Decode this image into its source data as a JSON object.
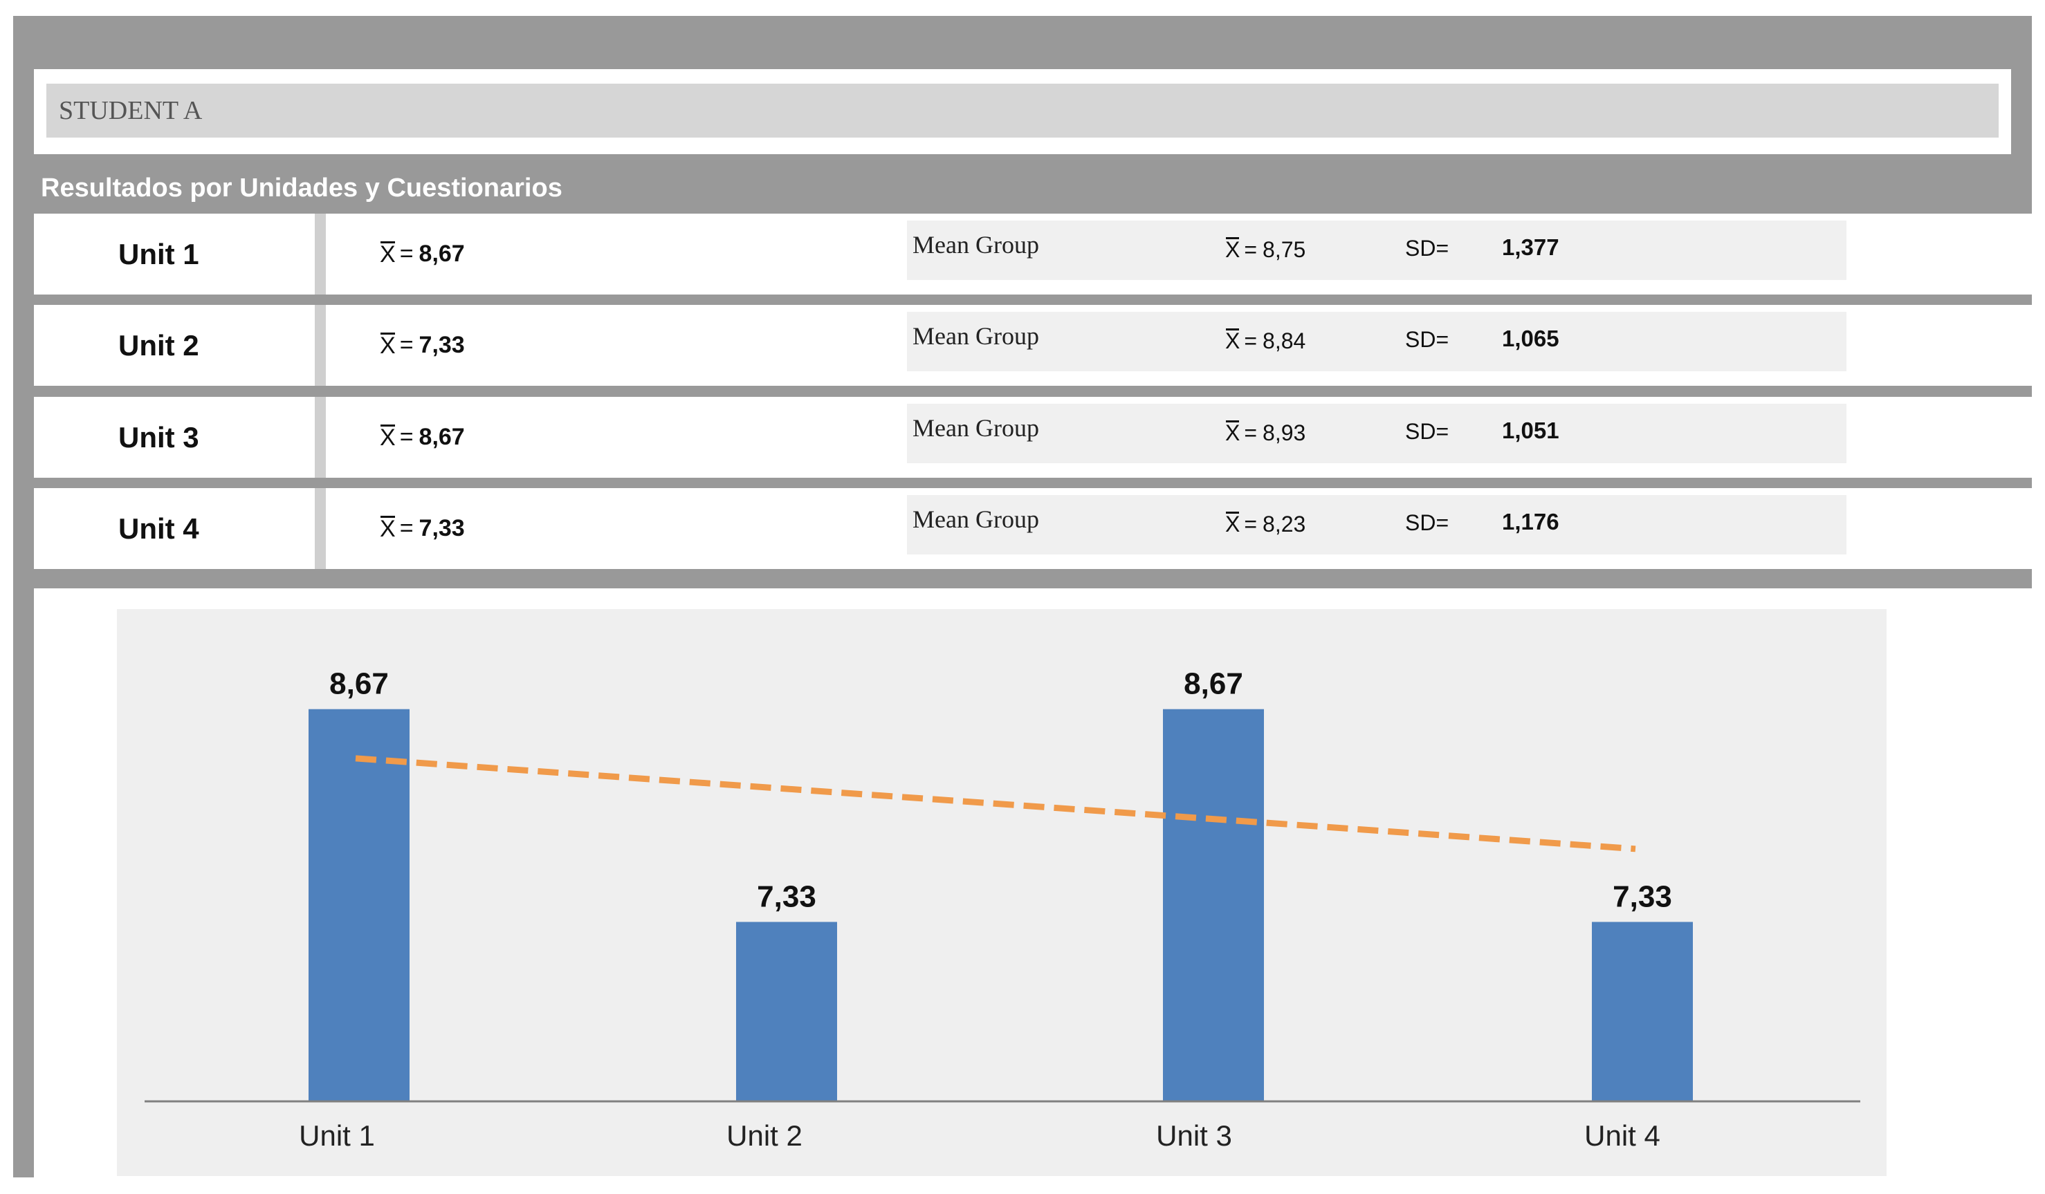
{
  "student": {
    "name": "STUDENT A"
  },
  "section": {
    "title": "Resultados por Unidades y Cuestionarios"
  },
  "units": [
    {
      "label": "Unit 1",
      "mean_symbol": "X",
      "mean_eq": "=",
      "mean": "8,67",
      "group_label": "Mean Group",
      "group_mean": "8,75",
      "sd_label": "SD=",
      "sd": "1,377"
    },
    {
      "label": "Unit 2",
      "mean_symbol": "X",
      "mean_eq": "=",
      "mean": "7,33",
      "group_label": "Mean Group",
      "group_mean": "8,84",
      "sd_label": "SD=",
      "sd": "1,065"
    },
    {
      "label": "Unit 3",
      "mean_symbol": "X",
      "mean_eq": "=",
      "mean": "8,67",
      "group_label": "Mean Group",
      "group_mean": "8,93",
      "sd_label": "SD=",
      "sd": "1,051"
    },
    {
      "label": "Unit 4",
      "mean_symbol": "X",
      "mean_eq": "=",
      "mean": "7,33",
      "group_label": "Mean Group",
      "group_mean": "8,23",
      "sd_label": "SD=",
      "sd": "1,176"
    }
  ],
  "chart_data": {
    "type": "bar",
    "title": "",
    "xlabel": "",
    "ylabel": "",
    "categories": [
      "Unit 1",
      "Unit 2",
      "Unit 3",
      "Unit  4"
    ],
    "values": [
      8.67,
      7.33,
      8.67,
      7.33
    ],
    "data_labels": [
      "8,67",
      "7,33",
      "8,67",
      "7,33"
    ],
    "trendline": {
      "type": "linear",
      "style": "dashed",
      "start": 8.36,
      "end": 7.79
    },
    "ylim": [
      6.2,
      9.3
    ],
    "grid": false,
    "legend": "none",
    "colors": {
      "bar": "#4f81bd",
      "trendline": "#f09a4a",
      "axis": "#808080"
    }
  }
}
